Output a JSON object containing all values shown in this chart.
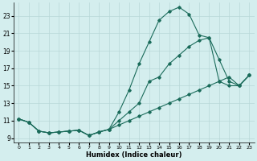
{
  "xlabel": "Humidex (Indice chaleur)",
  "background_color": "#d4eeee",
  "grid_color": "#b8d8d8",
  "line_color": "#1a6b5a",
  "xlim": [
    -0.5,
    23.5
  ],
  "ylim": [
    8.5,
    24.5
  ],
  "xticks": [
    0,
    1,
    2,
    3,
    4,
    5,
    6,
    7,
    8,
    9,
    10,
    11,
    12,
    13,
    14,
    15,
    16,
    17,
    18,
    19,
    20,
    21,
    22,
    23
  ],
  "yticks": [
    9,
    11,
    13,
    15,
    17,
    19,
    21,
    23
  ],
  "line1_x": [
    0,
    1,
    2,
    3,
    4,
    5,
    6,
    7,
    8,
    9,
    10,
    11,
    12,
    13,
    14,
    15,
    16,
    17,
    18,
    19,
    20,
    21,
    22,
    23
  ],
  "line1_y": [
    11.2,
    10.8,
    9.8,
    9.6,
    9.7,
    9.8,
    9.9,
    9.3,
    9.7,
    10.0,
    10.5,
    11.0,
    11.5,
    12.0,
    12.5,
    13.0,
    13.5,
    14.0,
    14.5,
    15.0,
    15.5,
    16.0,
    15.0,
    16.2
  ],
  "line2_x": [
    0,
    1,
    2,
    3,
    4,
    5,
    6,
    7,
    8,
    9,
    10,
    11,
    12,
    13,
    14,
    15,
    16,
    17,
    18,
    19,
    20,
    21,
    22,
    23
  ],
  "line2_y": [
    11.2,
    10.8,
    9.8,
    9.6,
    9.7,
    9.8,
    9.9,
    9.3,
    9.7,
    10.0,
    12.0,
    14.5,
    17.5,
    20.0,
    22.5,
    23.5,
    24.0,
    23.2,
    20.8,
    20.5,
    18.0,
    15.5,
    15.0,
    16.2
  ],
  "line3_x": [
    0,
    1,
    2,
    3,
    4,
    5,
    6,
    7,
    8,
    9,
    10,
    11,
    12,
    13,
    14,
    15,
    16,
    17,
    18,
    19,
    20,
    21,
    22,
    23
  ],
  "line3_y": [
    11.2,
    10.8,
    9.8,
    9.6,
    9.7,
    9.8,
    9.9,
    9.3,
    9.7,
    10.0,
    11.0,
    12.0,
    13.0,
    15.5,
    16.0,
    17.5,
    18.5,
    19.5,
    20.2,
    20.5,
    15.5,
    15.0,
    15.0,
    16.2
  ]
}
